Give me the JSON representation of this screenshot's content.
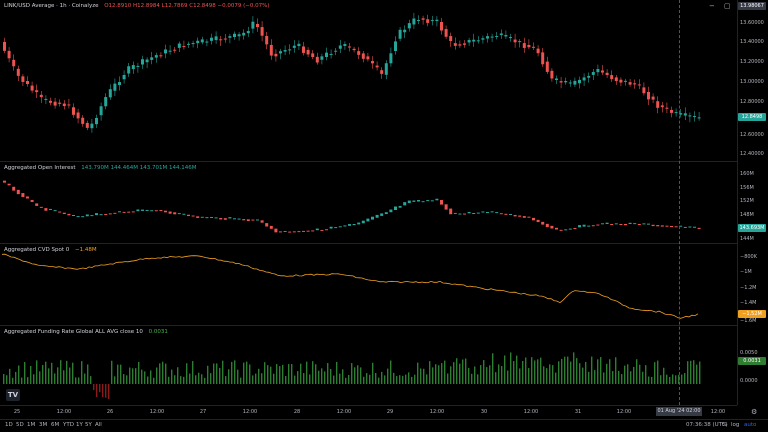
{
  "header": {
    "symbol": "LINK/USD Average · 1h · Coinalyze",
    "ohlc": "O12.8910  H12.8984  L12.7869  C12.8498  −0.0079 (−0.07%)"
  },
  "main_axis": {
    "ticks": [
      "13.60000",
      "13.40000",
      "13.20000",
      "13.00000",
      "12.80000",
      "12.60000",
      "12.40000"
    ],
    "crosshair_price": "13.98067",
    "last_price": "12.8498"
  },
  "oi": {
    "label": "Aggregated Open Interest",
    "values": "143.790M  144.464M  143.701M  144.146M",
    "ticks": [
      "160M",
      "156M",
      "152M",
      "148M",
      "144M"
    ],
    "last": "143.693M"
  },
  "cvd": {
    "label": "Aggregated CVD Spot",
    "param": "0",
    "value": "−1.48M",
    "ticks": [
      "−800K",
      "−1M",
      "−1.2M",
      "−1.4M",
      "−1.6M"
    ],
    "last": "−1.52M"
  },
  "funding": {
    "label": "Aggregated Funding Rate Global ALL AVG close 10",
    "value": "0.0031",
    "ticks": [
      "0.0050",
      "0.0000"
    ],
    "last": "0.0031"
  },
  "xaxis": {
    "ticks": [
      "25",
      "12:00",
      "26",
      "12:00",
      "27",
      "12:00",
      "28",
      "12:00",
      "29",
      "12:00",
      "30",
      "12:00",
      "31",
      "12:00",
      "12:00"
    ],
    "crosshair_time": "01 Aug '24  02:00"
  },
  "bottom": {
    "ranges": [
      "1D",
      "5D",
      "1M",
      "3M",
      "6M",
      "YTD",
      "1Y",
      "5Y",
      "All"
    ],
    "clock": "07:36:38 (UTC)",
    "pct": "%",
    "log": "log",
    "auto": "auto"
  },
  "icons": {
    "logo": "tv-logo-icon",
    "settings": "gear-icon"
  },
  "colors": {
    "up": "#26a69a",
    "down": "#ef5350",
    "cvd": "#f0a020",
    "funding": "#2e7d32",
    "tag_oi": "#26a69a",
    "tag_cvd": "#f0a020"
  }
}
